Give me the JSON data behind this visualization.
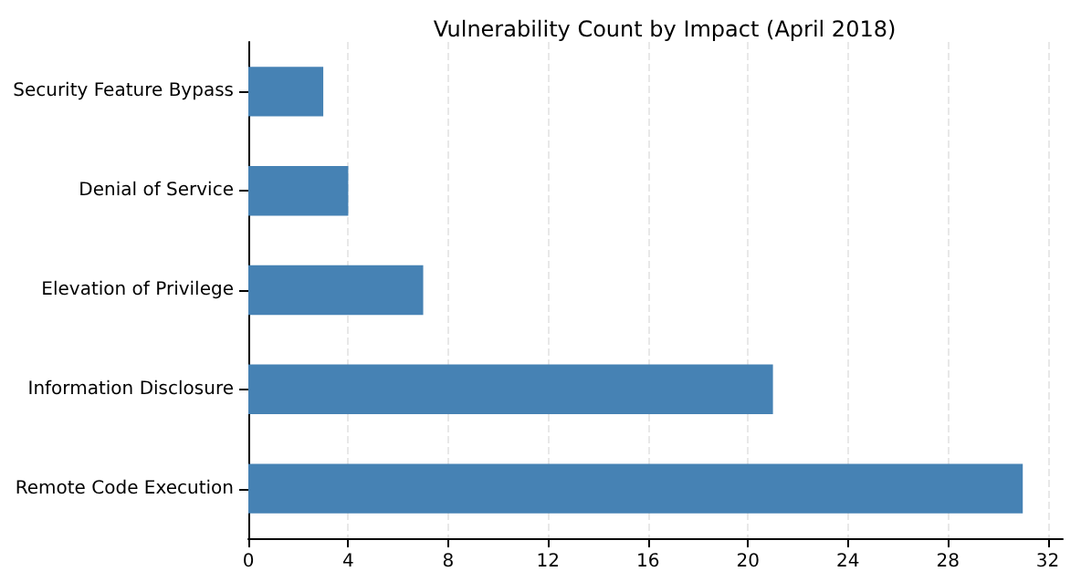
{
  "chart_data": {
    "type": "bar",
    "orientation": "horizontal",
    "title": "Vulnerability Count by Impact (April 2018)",
    "categories": [
      "Security Feature Bypass",
      "Denial of Service",
      "Elevation of Privilege",
      "Information Disclosure",
      "Remote Code Execution"
    ],
    "values": [
      3,
      4,
      7,
      21,
      31
    ],
    "color": "#4682b4",
    "xlim": [
      0,
      32.6
    ],
    "xticks": [
      0,
      4,
      8,
      12,
      16,
      20,
      24,
      28,
      32
    ],
    "grid": "x"
  }
}
